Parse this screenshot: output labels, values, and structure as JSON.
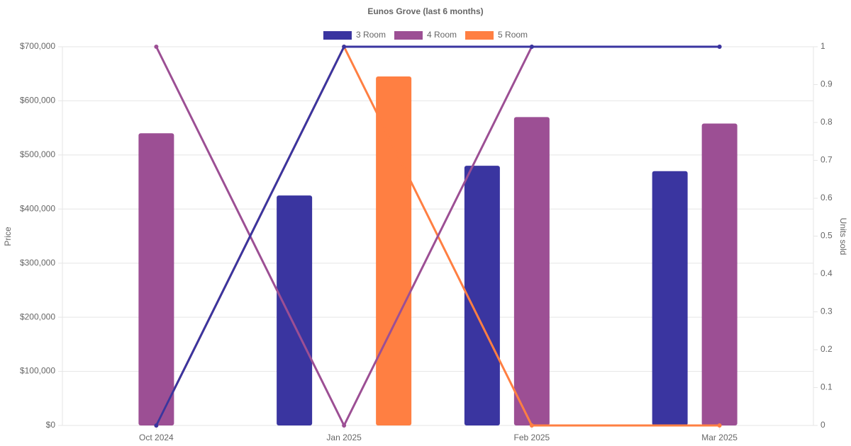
{
  "chart_data": {
    "type": "bar-line",
    "title": "Eunos Grove (last 6 months)",
    "categories": [
      "Oct 2024",
      "Jan 2025",
      "Feb 2025",
      "Mar 2025"
    ],
    "ylabel": "Price",
    "y2label": "Units sold",
    "ylim": [
      0,
      700000
    ],
    "yticks": [
      {
        "value": 0,
        "label": "$0"
      },
      {
        "value": 100000,
        "label": "$100,000"
      },
      {
        "value": 200000,
        "label": "$200,000"
      },
      {
        "value": 300000,
        "label": "$300,000"
      },
      {
        "value": 400000,
        "label": "$400,000"
      },
      {
        "value": 500000,
        "label": "$500,000"
      },
      {
        "value": 600000,
        "label": "$600,000"
      },
      {
        "value": 700000,
        "label": "$700,000"
      }
    ],
    "y2lim": [
      0,
      1
    ],
    "y2ticks": [
      0,
      0.1,
      0.2,
      0.3,
      0.4,
      0.5,
      0.6,
      0.7,
      0.8,
      0.9,
      1
    ],
    "grid": true,
    "legend": "top",
    "series": [
      {
        "name": "3 Room",
        "type": "bar",
        "color": "#3a35a0",
        "values": [
          null,
          425000,
          480000,
          470000
        ]
      },
      {
        "name": "4 Room",
        "type": "bar",
        "color": "#9c4f94",
        "values": [
          540000,
          null,
          570000,
          558000
        ]
      },
      {
        "name": "5 Room",
        "type": "bar",
        "color": "#ff7f42",
        "values": [
          null,
          645000,
          null,
          null
        ]
      },
      {
        "type": "line",
        "axis": "y2",
        "color": "#ff7f42",
        "values": [
          0,
          1,
          0,
          0
        ]
      },
      {
        "type": "line",
        "axis": "y2",
        "color": "#9c4f94",
        "values": [
          1,
          0,
          1,
          1
        ]
      },
      {
        "type": "line",
        "axis": "y2",
        "color": "#3a35a0",
        "values": [
          0,
          1,
          1,
          1
        ]
      }
    ]
  }
}
